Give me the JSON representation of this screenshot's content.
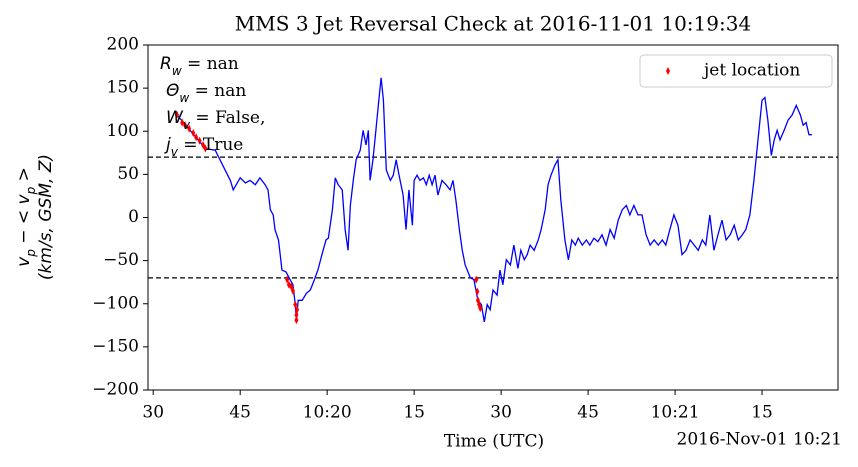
{
  "chart_data": {
    "type": "line",
    "title": "MMS 3 Jet Reversal Check at 2016-11-01 10:19:34",
    "xlabel": "Time (UTC)",
    "offset_text": "2016-Nov-01 10:21",
    "ylabel": {
      "line1": [
        {
          "t": "v"
        },
        {
          "sub": "p"
        },
        {
          "t": " − < v"
        },
        {
          "sub": "p"
        },
        {
          "t": " >"
        }
      ],
      "line2": "(km/s, GSM, Z)"
    },
    "annotations": [
      {
        "symbol": "R",
        "sub": "w",
        "text": " = nan"
      },
      {
        "symbol": "Θ",
        "sub": "w",
        "text": " = nan"
      },
      {
        "symbol": "W",
        "sub": "v",
        "text": " = False,"
      },
      {
        "symbol": "j",
        "sub": "v",
        "text": " = True"
      }
    ],
    "xlim": [
      37169.1,
      37288.1
    ],
    "ylim": [
      -200,
      200
    ],
    "xticks": [
      {
        "value": 37170,
        "label": "30"
      },
      {
        "value": 37185,
        "label": "45"
      },
      {
        "value": 37200,
        "label": "10:20"
      },
      {
        "value": 37215,
        "label": "15"
      },
      {
        "value": 37230,
        "label": "30"
      },
      {
        "value": 37245,
        "label": "45"
      },
      {
        "value": 37260,
        "label": "10:21"
      },
      {
        "value": 37275,
        "label": "15"
      }
    ],
    "yticks": [
      200,
      150,
      100,
      50,
      0,
      {
        "value": -50,
        "label": "−50"
      },
      {
        "value": -100,
        "label": "−100"
      },
      {
        "value": -150,
        "label": "−150"
      },
      {
        "value": -200,
        "label": "−200"
      }
    ],
    "hlines": [
      70,
      -70
    ],
    "legend": "upper right",
    "series": [
      {
        "type": "line",
        "color": "#0000ff",
        "x": [
          37174.1,
          37179.0,
          37180.7,
          37182.4,
          37183.3,
          37183.8,
          37185.0,
          37185.9,
          37186.7,
          37187.6,
          37188.4,
          37189.3,
          37189.8,
          37190.2,
          37190.7,
          37191.0,
          37191.6,
          37191.9,
          37192.2,
          37192.9,
          37193.6,
          37194.1,
          37194.5,
          37194.7,
          37195.0,
          37195.7,
          37196.4,
          37197.1,
          37197.8,
          37198.4,
          37199.1,
          37199.8,
          37200.2,
          37200.9,
          37201.4,
          37201.9,
          37202.6,
          37203.1,
          37203.6,
          37204.0,
          37204.5,
          37205.0,
          37205.7,
          37206.2,
          37206.7,
          37207.1,
          37207.4,
          37207.9,
          37208.4,
          37209.0,
          37209.3,
          37209.7,
          37210.2,
          37210.9,
          37211.4,
          37211.9,
          37212.4,
          37213.1,
          37213.6,
          37214.1,
          37214.7,
          37215.0,
          37215.5,
          37216.0,
          37216.6,
          37217.1,
          37217.6,
          37218.1,
          37218.6,
          37219.1,
          37219.8,
          37220.5,
          37221.2,
          37221.7,
          37222.2,
          37222.8,
          37223.3,
          37223.8,
          37224.7,
          37225.3,
          37226.0,
          37226.6,
          37227.1,
          37227.6,
          37228.1,
          37228.6,
          37229.3,
          37229.8,
          37230.3,
          37230.9,
          37231.6,
          37232.2,
          37232.9,
          37233.4,
          37234.0,
          37234.5,
          37235.0,
          37235.7,
          37236.4,
          37236.9,
          37237.6,
          37238.1,
          37238.6,
          37239.3,
          37239.8,
          37240.3,
          37241.0,
          37241.6,
          37242.2,
          37242.8,
          37243.3,
          37244.0,
          37244.7,
          37245.3,
          37246.0,
          37246.7,
          37247.4,
          37248.1,
          37248.8,
          37249.5,
          37250.2,
          37250.9,
          37251.6,
          37252.2,
          37252.9,
          37253.6,
          37254.3,
          37255.0,
          37255.7,
          37256.4,
          37257.1,
          37257.8,
          37258.4,
          37259.1,
          37259.8,
          37260.5,
          37261.2,
          37261.9,
          37262.6,
          37263.3,
          37264.0,
          37264.7,
          37265.3,
          37266.0,
          37266.7,
          37267.4,
          37268.1,
          37268.8,
          37269.5,
          37270.2,
          37270.9,
          37271.6,
          37272.2,
          37272.9,
          37273.6,
          37274.3,
          37275.0,
          37275.5,
          37276.0,
          37276.6,
          37277.1,
          37277.6,
          37278.1,
          37278.8,
          37279.5,
          37280.2,
          37280.9,
          37281.6,
          37282.1,
          37282.6,
          37283.1,
          37283.6
        ],
        "values": [
          119,
          80,
          78,
          55,
          43,
          32,
          46,
          40,
          43,
          38,
          46,
          38,
          32,
          9,
          3,
          -14,
          -26,
          -43,
          -61,
          -63,
          -72,
          -78,
          -101,
          -119,
          -96,
          -96,
          -88,
          -84,
          -72,
          -61,
          -43,
          -26,
          -24,
          9,
          46,
          38,
          32,
          -14,
          -38,
          14,
          43,
          67,
          78,
          101,
          84,
          101,
          43,
          67,
          101,
          142,
          162,
          136,
          55,
          43,
          49,
          67,
          49,
          26,
          -14,
          32,
          -9,
          43,
          49,
          43,
          46,
          38,
          49,
          38,
          49,
          26,
          43,
          38,
          32,
          43,
          20,
          -14,
          -38,
          -55,
          -70,
          -72,
          -96,
          -101,
          -121,
          -101,
          -107,
          -84,
          -90,
          -61,
          -78,
          -49,
          -55,
          -32,
          -59,
          -38,
          -49,
          -43,
          -32,
          -38,
          -26,
          -14,
          9,
          38,
          49,
          61,
          67,
          20,
          -26,
          -49,
          -26,
          -32,
          -24,
          -32,
          -26,
          -32,
          -24,
          -28,
          -20,
          -32,
          -14,
          -24,
          -3,
          9,
          14,
          3,
          14,
          3,
          3,
          -20,
          -32,
          -26,
          -32,
          -26,
          -32,
          -14,
          3,
          -9,
          -43,
          -38,
          -26,
          -32,
          -38,
          -26,
          -32,
          3,
          -38,
          -20,
          -3,
          -26,
          -20,
          -9,
          -26,
          -20,
          -14,
          3,
          43,
          90,
          136,
          139,
          113,
          72,
          90,
          101,
          90,
          101,
          113,
          119,
          130,
          119,
          107,
          110,
          96,
          96
        ]
      },
      {
        "type": "scatter",
        "name": "jet location",
        "color": "#ff0000",
        "marker": "diamond",
        "x": [
          37174.1,
          37175.0,
          37175.5,
          37176.2,
          37176.9,
          37177.4,
          37178.0,
          37178.6,
          37179.0,
          37193.1,
          37193.4,
          37193.8,
          37194.1,
          37194.5,
          37194.7,
          37194.7,
          37194.8,
          37225.7,
          37225.9,
          37226.0,
          37226.2,
          37226.4
        ],
        "values": [
          119,
          110,
          107,
          103,
          98,
          93,
          89,
          84,
          80,
          -72,
          -78,
          -80,
          -85,
          -101,
          -113,
          -119,
          -107,
          -72,
          -86,
          -96,
          -101,
          -105
        ]
      }
    ]
  }
}
